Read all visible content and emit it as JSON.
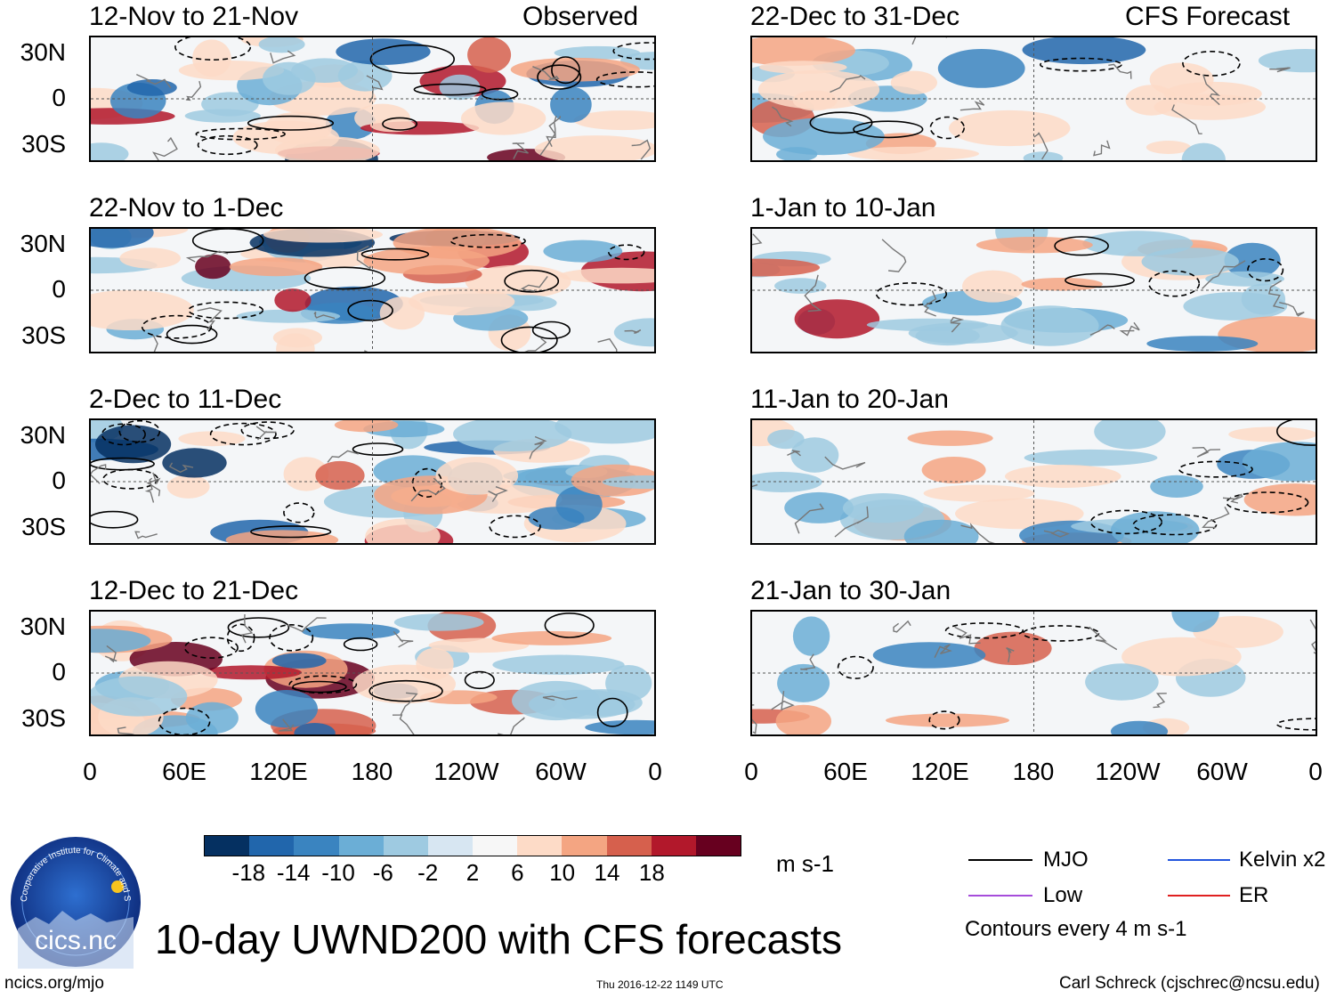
{
  "header": {
    "left_label": "Observed",
    "right_label": "CFS Forecast"
  },
  "panels": {
    "observed": [
      {
        "title": "12-Nov to 21-Nov"
      },
      {
        "title": "22-Nov to 1-Dec"
      },
      {
        "title": "2-Dec to 11-Dec"
      },
      {
        "title": "12-Dec to 21-Dec"
      }
    ],
    "forecast": [
      {
        "title": "22-Dec to 31-Dec"
      },
      {
        "title": "1-Jan to 10-Jan"
      },
      {
        "title": "11-Jan to 20-Jan"
      },
      {
        "title": "21-Jan to 30-Jan"
      }
    ]
  },
  "axes": {
    "y_ticks": [
      "30N",
      "0",
      "30S"
    ],
    "x_ticks": [
      "0",
      "60E",
      "120E",
      "180",
      "120W",
      "60W",
      "0"
    ]
  },
  "colorbar": {
    "colors": [
      "#053061",
      "#2166ac",
      "#3a84c0",
      "#6baed6",
      "#9ecae1",
      "#d7e6f2",
      "#f7f7f7",
      "#fddbc7",
      "#f4a582",
      "#d6604d",
      "#b2182b",
      "#67001f"
    ],
    "labels": [
      "-18",
      "-14",
      "-10",
      "-6",
      "-2",
      "2",
      "6",
      "10",
      "14",
      "18"
    ],
    "units": "m s-1"
  },
  "legend": {
    "items": [
      {
        "label": "MJO",
        "color": "#000000"
      },
      {
        "label": "Kelvin x2",
        "color": "#2255dd"
      },
      {
        "label": "Low",
        "color": "#a64ddb"
      },
      {
        "label": "ER",
        "color": "#e02020"
      }
    ],
    "note": "Contours every 4 m s-1"
  },
  "footer": {
    "main_title": "10-day UWND200 with CFS forecasts",
    "url": "ncics.org/mjo",
    "timestamp": "Thu 2016-12-22 1149 UTC",
    "author": "Carl Schreck (cjschrec@ncsu.edu)",
    "logo_text": "cics.nc",
    "logo_ring": "Cooperative Institute for Climate and Satellites"
  },
  "chart_data": {
    "type": "heatmap",
    "variable": "200-hPa zonal wind anomaly",
    "units": "m s-1",
    "x_range": [
      0,
      360
    ],
    "y_range": [
      -40,
      40
    ],
    "contour_interval": 4,
    "observed_periods": [
      "12-Nov to 21-Nov",
      "22-Nov to 1-Dec",
      "2-Dec to 11-Dec",
      "12-Dec to 21-Dec"
    ],
    "forecast_periods": [
      "22-Dec to 31-Dec",
      "1-Jan to 10-Jan",
      "11-Jan to 20-Jan",
      "21-Jan to 30-Jan"
    ],
    "levels": [
      -18,
      -14,
      -10,
      -6,
      -2,
      2,
      6,
      10,
      14,
      18
    ]
  }
}
